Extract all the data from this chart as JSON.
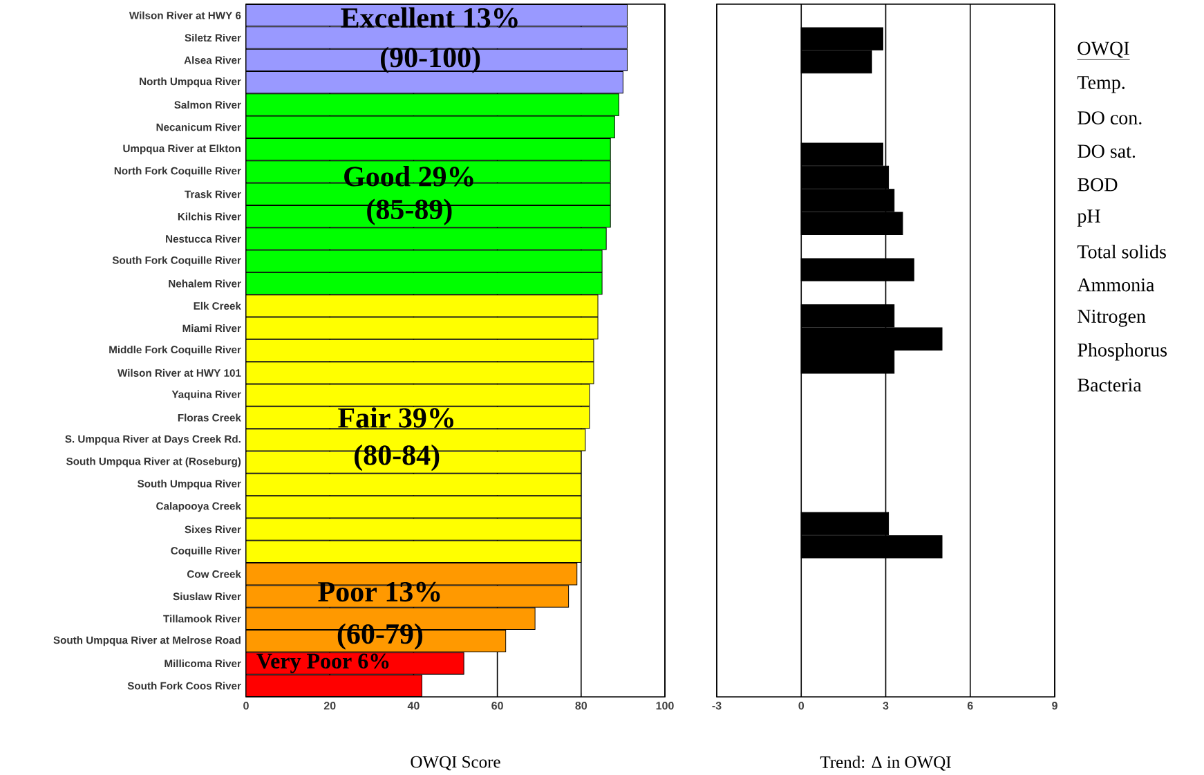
{
  "chart_data": [
    {
      "type": "bar",
      "orientation": "horizontal",
      "xlabel": "OWQI Score",
      "categories": [
        "Wilson River at HWY 6",
        "Siletz River",
        "Alsea River",
        "North Umpqua River",
        "Salmon River",
        "Necanicum River",
        "Umpqua River at Elkton",
        "North Fork Coquille River",
        "Trask River",
        "Kilchis River",
        "Nestucca River",
        "South Fork Coquille River",
        "Nehalem River",
        "Elk Creek",
        "Miami River",
        "Middle Fork Coquille River",
        "Wilson River at HWY 101",
        "Yaquina River",
        "Floras Creek",
        "S. Umpqua River at Days Creek Rd.",
        "South Umpqua River at (Roseburg)",
        "South Umpqua River",
        "Calapooya Creek",
        "Sixes River",
        "Coquille River",
        "Cow Creek",
        "Siuslaw River",
        "Tillamook River",
        "South Umpqua River at Melrose Road",
        "Millicoma River",
        "South Fork Coos River"
      ],
      "values": [
        91,
        91,
        91,
        90,
        89,
        88,
        87,
        87,
        87,
        87,
        86,
        85,
        85,
        84,
        84,
        83,
        83,
        82,
        82,
        81,
        80,
        80,
        80,
        80,
        80,
        79,
        77,
        69,
        62,
        52,
        42
      ],
      "colors": [
        "#9999ff",
        "#9999ff",
        "#9999ff",
        "#9999ff",
        "#00ff00",
        "#00ff00",
        "#00ff00",
        "#00ff00",
        "#00ff00",
        "#00ff00",
        "#00ff00",
        "#00ff00",
        "#00ff00",
        "#ffff00",
        "#ffff00",
        "#ffff00",
        "#ffff00",
        "#ffff00",
        "#ffff00",
        "#ffff00",
        "#ffff00",
        "#ffff00",
        "#ffff00",
        "#ffff00",
        "#ffff00",
        "#ff9900",
        "#ff9900",
        "#ff9900",
        "#ff9900",
        "#ff0000",
        "#ff0000"
      ],
      "xlim": [
        0,
        100
      ],
      "xticks": [
        0,
        20,
        40,
        60,
        80,
        100
      ],
      "grid": "x",
      "annotations": [
        "Excellent  13%",
        "(90-100)",
        "Good  29%",
        "(85-89)",
        "Fair  39%",
        "(80-84)",
        "Poor  13%",
        "(60-79)",
        "Very Poor 6%"
      ]
    },
    {
      "type": "bar",
      "orientation": "horizontal",
      "xlabel": "Trend: Δ in OWQI",
      "categories": [
        null,
        null,
        null,
        null,
        null,
        null,
        null,
        null,
        null,
        null,
        null,
        null,
        null,
        null,
        null,
        null,
        null,
        null,
        null,
        null,
        null,
        null,
        null,
        null,
        null,
        null,
        null,
        null,
        null,
        null
      ],
      "values": [
        null,
        2.9,
        2.5,
        null,
        null,
        null,
        2.9,
        3.1,
        3.3,
        3.6,
        null,
        4.0,
        null,
        3.3,
        5.0,
        3.3,
        null,
        null,
        null,
        null,
        null,
        null,
        3.1,
        5.0,
        null,
        null,
        null,
        null,
        null,
        null
      ],
      "color": "#000000",
      "xlim": [
        -3,
        9
      ],
      "xticks": [
        -3,
        0,
        3,
        6,
        9
      ],
      "grid": "x",
      "annotations": [
        "OWQI",
        "Temp.",
        "DO con.",
        "DO sat.",
        "BOD",
        "pH",
        "Total solids",
        "Ammonia",
        "Nitrogen",
        "Phosphorus",
        "Bacteria"
      ]
    }
  ]
}
